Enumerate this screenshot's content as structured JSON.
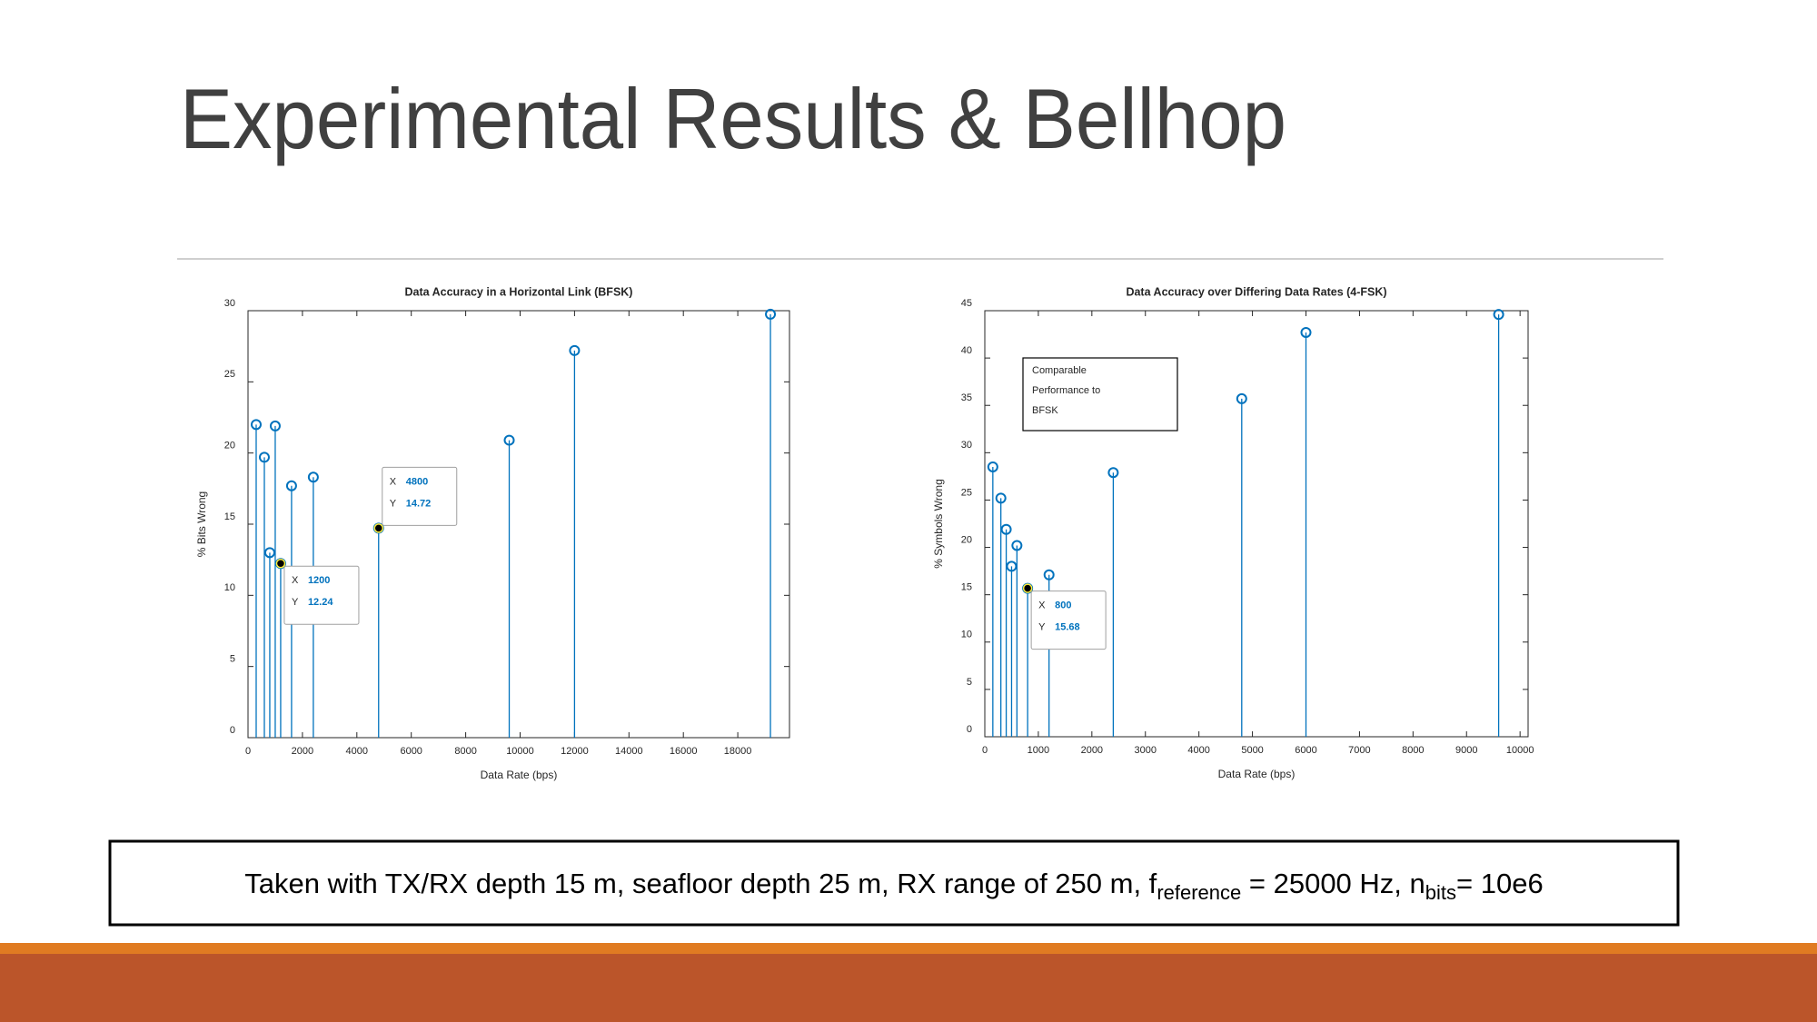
{
  "title": "Experimental Results & Bellhop",
  "caption": [
    "Taken with TX/RX depth 15 m, seafloor depth 25 m, RX range of 250 m, f",
    "reference",
    " = 25000 Hz, n",
    "bits",
    "= 10e6"
  ],
  "chart_data": [
    {
      "type": "stem",
      "title": "Data Accuracy in a Horizontal Link (BFSK)",
      "x_label": "Data Rate (bps)",
      "y_label": "% Bits Wrong",
      "color": "#0072bd",
      "x": [
        300,
        600,
        800,
        1000,
        1200,
        1600,
        2400,
        4800,
        9600,
        12000,
        19200
      ],
      "values": [
        22.0,
        19.7,
        13.0,
        21.9,
        12.24,
        17.7,
        18.3,
        14.72,
        20.9,
        27.2,
        29.75
      ],
      "xlim": [
        0,
        19900
      ],
      "ylim": [
        0,
        30
      ],
      "xticks": [
        0,
        2000,
        4000,
        6000,
        8000,
        10000,
        12000,
        14000,
        16000,
        18000
      ],
      "yticks": [
        0,
        5,
        10,
        15,
        20,
        25,
        30
      ],
      "datatips": [
        {
          "x_label": "X",
          "x": 1200,
          "y_label": "Y",
          "y": 12.24
        },
        {
          "x_label": "X",
          "x": 4800,
          "y_label": "Y",
          "y": 14.72
        }
      ]
    },
    {
      "type": "stem",
      "title": "Data Accuracy over Differing Data Rates (4-FSK)",
      "x_label": "Data Rate (bps)",
      "y_label": "% Symbols Wrong",
      "color": "#0072bd",
      "x": [
        150,
        300,
        400,
        500,
        600,
        800,
        1200,
        2400,
        4800,
        6000,
        9600
      ],
      "values": [
        28.5,
        25.2,
        21.9,
        18.0,
        20.2,
        15.68,
        17.1,
        27.9,
        35.7,
        42.7,
        44.6
      ],
      "xlim": [
        0,
        10150
      ],
      "ylim": [
        0,
        45
      ],
      "xticks": [
        0,
        1000,
        2000,
        3000,
        4000,
        5000,
        6000,
        7000,
        8000,
        9000,
        10000
      ],
      "yticks": [
        0,
        5,
        10,
        15,
        20,
        25,
        30,
        35,
        40,
        45
      ],
      "annotations": [
        "Comparable",
        "Performance to",
        "BFSK"
      ],
      "datatips": [
        {
          "x_label": "X",
          "x": 800,
          "y_label": "Y",
          "y": 15.68
        }
      ]
    }
  ]
}
